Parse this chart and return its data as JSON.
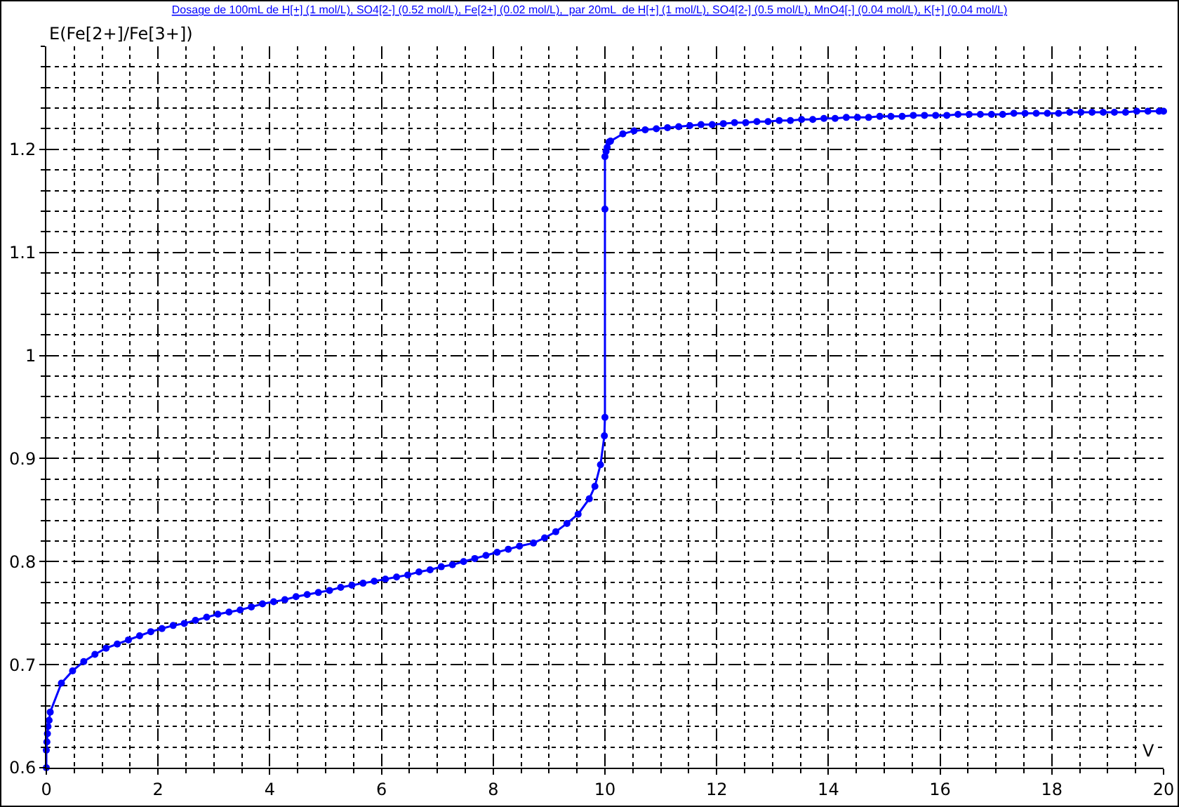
{
  "chart_data": {
    "type": "line",
    "title": "Dosage de 100mL de H[+] (1 mol/L), SO4[2-] (0.52 mol/L), Fe[2+] (0.02 mol/L),  par 20mL  de H[+] (1 mol/L), SO4[2-] (0.5 mol/L), MnO4[-] (0.04 mol/L), K[+] (0.04 mol/L)",
    "xlabel": "V",
    "ylabel": "E(Fe[2+]/Fe[3+])",
    "xlim": [
      0,
      20
    ],
    "xticks": [
      0,
      2,
      4,
      6,
      8,
      10,
      12,
      14,
      16,
      18,
      20
    ],
    "ylim": [
      0.6,
      1.3
    ],
    "yticks": [
      0.6,
      0.7,
      0.8,
      0.9,
      {
        "value": 1,
        "label": "1"
      },
      1.1,
      1.2
    ],
    "grid": true,
    "marker": "circle",
    "line_style": "solid",
    "series": [
      {
        "color": "#0000ff",
        "x": [
          0,
          0,
          0.01,
          0.02,
          0.03,
          0.05,
          0.07,
          0.27,
          0.47,
          0.67,
          0.87,
          1.07,
          1.27,
          1.47,
          1.67,
          1.87,
          2.07,
          2.27,
          2.47,
          2.67,
          2.87,
          3.07,
          3.27,
          3.47,
          3.67,
          3.87,
          4.07,
          4.27,
          4.47,
          4.67,
          4.87,
          5.07,
          5.27,
          5.47,
          5.67,
          5.87,
          6.07,
          6.27,
          6.47,
          6.67,
          6.87,
          7.07,
          7.27,
          7.47,
          7.67,
          7.87,
          8.07,
          8.27,
          8.47,
          8.72,
          8.92,
          9.12,
          9.32,
          9.52,
          9.72,
          9.82,
          9.92,
          9.99,
          10,
          10,
          10,
          10.02,
          10.04,
          10.07,
          10.1,
          10.32,
          10.52,
          10.72,
          10.92,
          11.12,
          11.32,
          11.52,
          11.72,
          11.92,
          12.12,
          12.32,
          12.52,
          12.72,
          12.92,
          13.12,
          13.32,
          13.52,
          13.72,
          13.92,
          14.12,
          14.32,
          14.52,
          14.72,
          14.92,
          15.12,
          15.32,
          15.52,
          15.72,
          15.92,
          16.12,
          16.32,
          16.52,
          16.72,
          16.92,
          17.12,
          17.32,
          17.52,
          17.72,
          17.92,
          18.12,
          18.32,
          18.52,
          18.72,
          18.92,
          19.12,
          19.32,
          19.52,
          19.72,
          19.92,
          20
        ],
        "values": [
          0.6,
          0.617,
          0.625,
          0.633,
          0.64,
          0.646,
          0.654,
          0.682,
          0.694,
          0.703,
          0.71,
          0.716,
          0.72,
          0.724,
          0.728,
          0.732,
          0.735,
          0.738,
          0.74,
          0.743,
          0.746,
          0.749,
          0.751,
          0.753,
          0.756,
          0.759,
          0.761,
          0.763,
          0.766,
          0.768,
          0.77,
          0.772,
          0.775,
          0.777,
          0.779,
          0.781,
          0.783,
          0.785,
          0.787,
          0.79,
          0.792,
          0.795,
          0.797,
          0.8,
          0.803,
          0.806,
          0.809,
          0.812,
          0.815,
          0.818,
          0.823,
          0.829,
          0.837,
          0.846,
          0.861,
          0.873,
          0.894,
          0.922,
          0.94,
          1.142,
          1.193,
          1.198,
          1.202,
          1.207,
          1.208,
          1.215,
          1.218,
          1.219,
          1.22,
          1.221,
          1.222,
          1.223,
          1.224,
          1.224,
          1.225,
          1.226,
          1.226,
          1.227,
          1.227,
          1.228,
          1.228,
          1.229,
          1.229,
          1.23,
          1.23,
          1.231,
          1.231,
          1.231,
          1.232,
          1.232,
          1.232,
          1.233,
          1.233,
          1.233,
          1.233,
          1.234,
          1.234,
          1.234,
          1.234,
          1.234,
          1.235,
          1.235,
          1.235,
          1.235,
          1.235,
          1.236,
          1.236,
          1.236,
          1.236,
          1.236,
          1.236,
          1.237,
          1.237,
          1.237,
          1.237
        ]
      }
    ]
  }
}
